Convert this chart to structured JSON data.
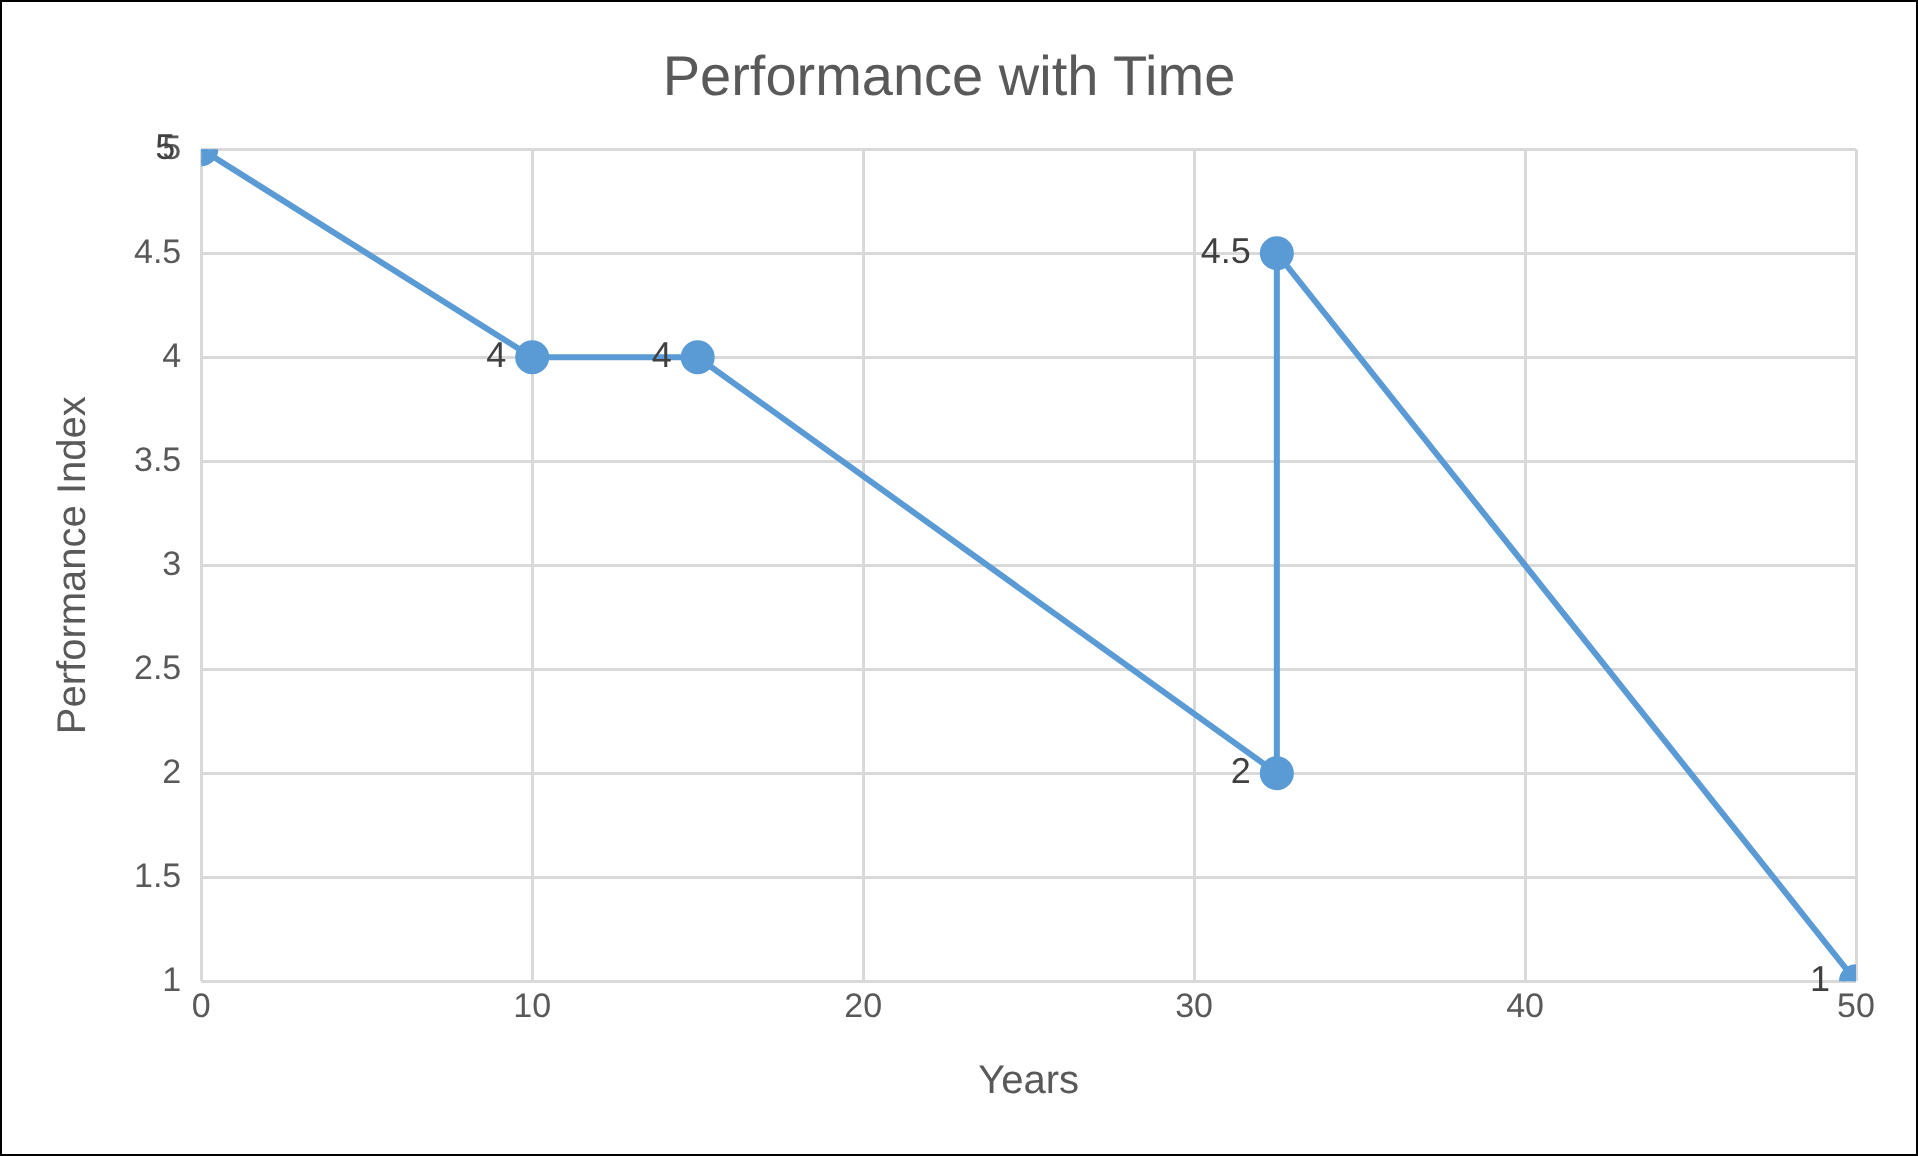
{
  "chart_data": {
    "type": "line",
    "title": "Performance with Time",
    "xlabel": "Years",
    "ylabel": "Performance Index",
    "x": [
      0,
      10,
      15,
      32.5,
      32.5,
      50
    ],
    "series": [
      {
        "color": "#5b9bd5",
        "values": [
          5,
          4,
          4,
          2,
          4.5,
          1
        ]
      }
    ],
    "xlim": [
      0,
      50
    ],
    "xticks": [
      0,
      10,
      20,
      30,
      40,
      50
    ],
    "ylim": [
      1,
      5
    ],
    "yticks": [
      1,
      1.5,
      2,
      2.5,
      3,
      3.5,
      4,
      4.5,
      5
    ],
    "grid": true,
    "legend": false,
    "marker": "circle",
    "line_style": "solid",
    "data_labels": true
  }
}
